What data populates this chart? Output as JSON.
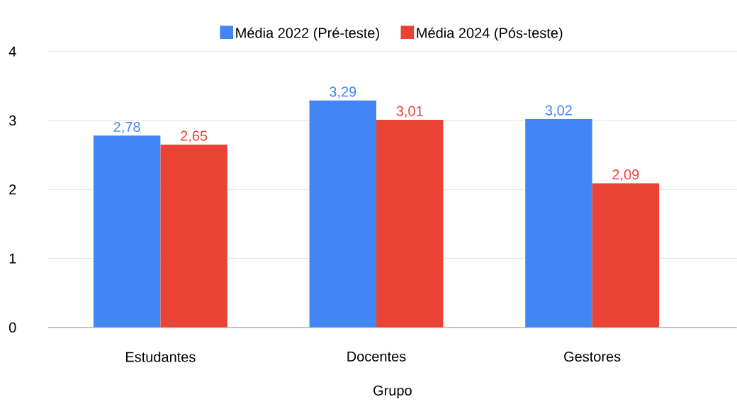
{
  "chart_data": {
    "type": "bar",
    "xlabel": "Grupo",
    "categories": [
      "Estudantes",
      "Docentes",
      "Gestores"
    ],
    "series": [
      {
        "name": "Média 2022 (Pré-teste)",
        "color": "#4285f4",
        "values": [
          2.78,
          3.29,
          3.02
        ],
        "value_labels": [
          "2,78",
          "3,29",
          "3,02"
        ]
      },
      {
        "name": "Média 2024 (Pós-teste)",
        "color": "#ea4335",
        "values": [
          2.65,
          3.01,
          2.09
        ],
        "value_labels": [
          "2,65",
          "3,01",
          "2,09"
        ]
      }
    ],
    "ylim": [
      0,
      4
    ],
    "yticks": [
      0,
      1,
      2,
      3,
      4
    ],
    "grid": "y",
    "legend": "top"
  }
}
